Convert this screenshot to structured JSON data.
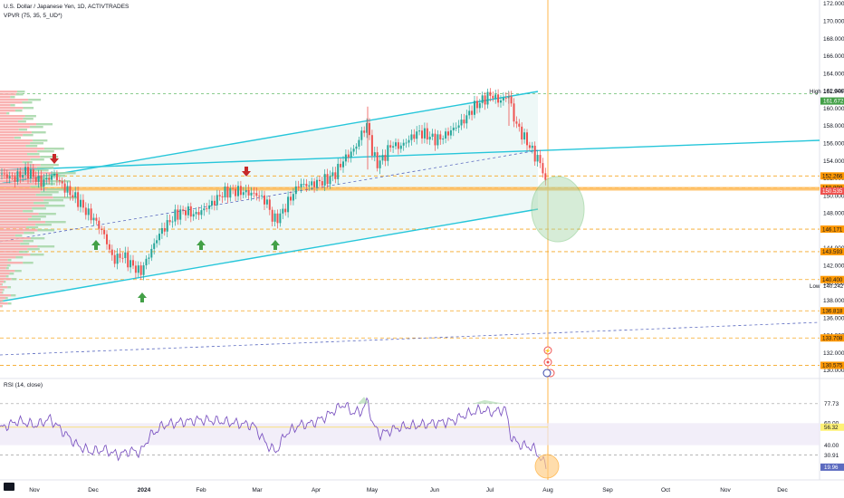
{
  "header": {
    "symbol_title": "U.S. Dollar / Japanese Yen, 1D, ACTIVTRADES",
    "indicator_label": "VPVR (75, 35, 5_UD*)",
    "rsi_label": "RSI (14, close)"
  },
  "colors": {
    "up": "#26a69a",
    "down": "#ef5350",
    "channel": "#26c6da",
    "level_line": "#f5a623",
    "level_badge": "#ff9800",
    "price_badge": "#ef5350",
    "high_badge": "#43a047",
    "rsi_line": "#7e57c2",
    "rsi_band": "#ede7f6",
    "circle_fill": "#a5d6a7",
    "oversold_circle": "#ffcc80",
    "vline": "#ffb74d"
  },
  "chart_data": {
    "type": "candlestick",
    "price_axis": {
      "ylim": [
        129.5,
        172.5
      ],
      "ticks": [
        "172.000",
        "170.000",
        "168.000",
        "166.000",
        "164.000",
        "162.000",
        "160.000",
        "158.000",
        "156.000",
        "154.000",
        "152.000",
        "150.000",
        "148.000",
        "146.000",
        "144.000",
        "142.000",
        "140.000",
        "138.000",
        "136.000",
        "134.000",
        "132.000",
        "130.000"
      ]
    },
    "time_axis": {
      "labels": [
        "Nov",
        "Dec",
        "2024",
        "Feb",
        "Mar",
        "Apr",
        "May",
        "Jun",
        "Jul",
        "Aug",
        "Sep",
        "Oct",
        "Nov",
        "Dec"
      ]
    },
    "high_label": {
      "name": "High",
      "value": "161.946"
    },
    "low_label": {
      "name": "Low",
      "value": "140.242"
    },
    "current_price": "150.535",
    "current_high_badge": "161.672",
    "levels": [
      {
        "value": 152.266,
        "label": "152.266"
      },
      {
        "value": 150.898,
        "label": "150.898"
      },
      {
        "value": 146.171,
        "label": "146.171"
      },
      {
        "value": 143.593,
        "label": "143.593"
      },
      {
        "value": 140.4,
        "label": "140.400"
      },
      {
        "value": 136.818,
        "label": "136.818"
      },
      {
        "value": 133.708,
        "label": "133.708"
      },
      {
        "value": 130.575,
        "label": "130.575"
      }
    ],
    "arrows": [
      {
        "dir": "down",
        "price": 153.2
      },
      {
        "dir": "down",
        "price": 152.2
      },
      {
        "dir": "up",
        "price": 145.0
      },
      {
        "dir": "up",
        "price": 145.0
      },
      {
        "dir": "up",
        "price": 145.0
      },
      {
        "dir": "up",
        "price": 139.0
      }
    ],
    "rsi": {
      "levels": [
        "77.73",
        "60.00",
        "56.32",
        "40.00",
        "30.91"
      ],
      "current": "19.96",
      "ylim": [
        10,
        85
      ]
    }
  }
}
